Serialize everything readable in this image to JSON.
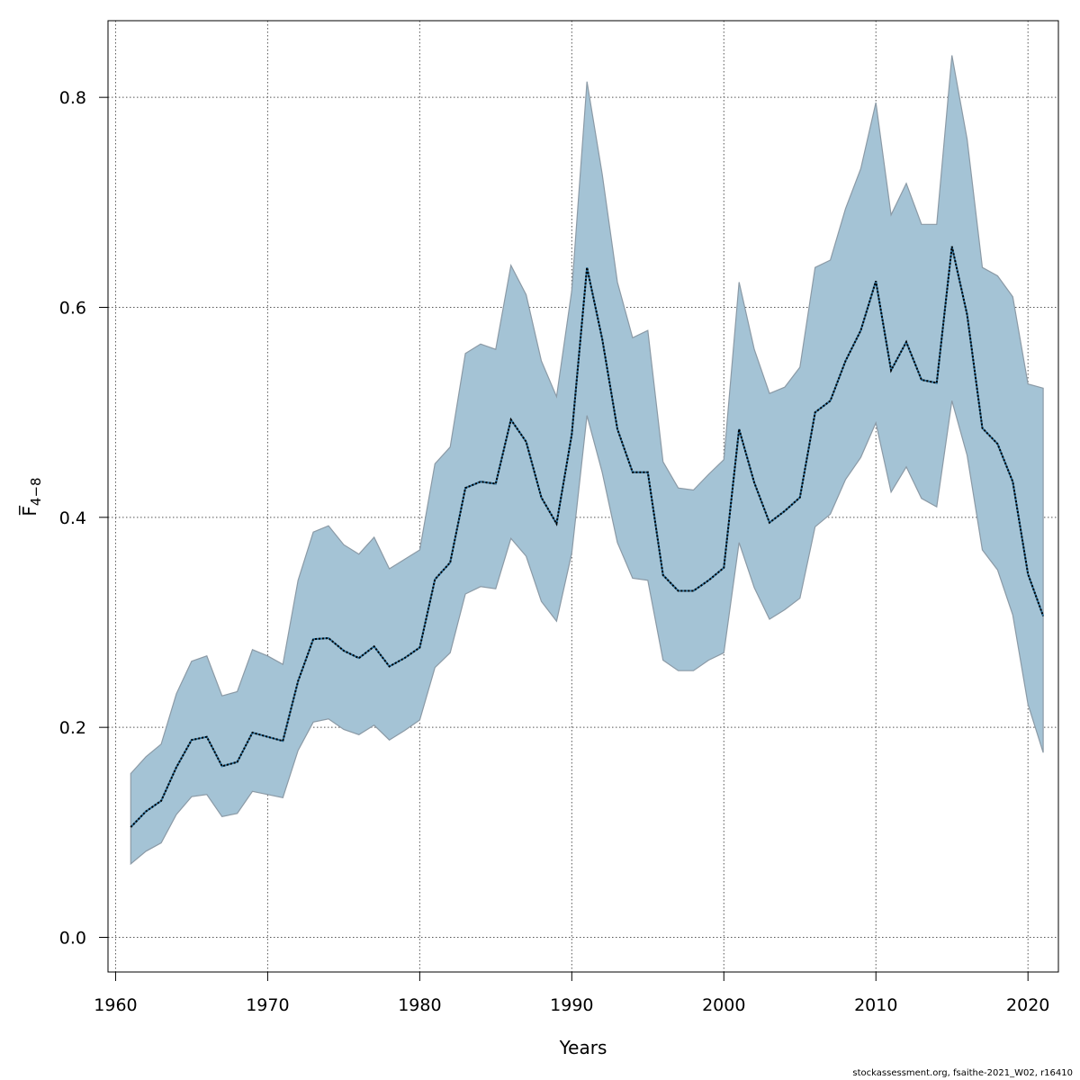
{
  "chart_data": {
    "type": "area",
    "xlabel": "Years",
    "ylabel": "F̅",
    "ylabel_subscript": "4−8",
    "xlim": [
      1959.5,
      2022.0
    ],
    "ylim": [
      -0.033,
      0.873
    ],
    "xticks": [
      1960,
      1970,
      1980,
      1990,
      2000,
      2010,
      2020
    ],
    "yticks": [
      0.0,
      0.2,
      0.4,
      0.6,
      0.8
    ],
    "ytick_labels": [
      "0.0",
      "0.2",
      "0.4",
      "0.6",
      "0.8"
    ],
    "grid": true,
    "colors": {
      "band": "#a4c3d5",
      "band_edge": "#8b9aa6",
      "line": "#000000",
      "line_under": "#2b6f9a"
    },
    "x": [
      1961,
      1962,
      1963,
      1964,
      1965,
      1966,
      1967,
      1968,
      1969,
      1970,
      1971,
      1972,
      1973,
      1974,
      1975,
      1976,
      1977,
      1978,
      1979,
      1980,
      1981,
      1982,
      1983,
      1984,
      1985,
      1986,
      1987,
      1988,
      1989,
      1990,
      1991,
      1992,
      1993,
      1994,
      1995,
      1996,
      1997,
      1998,
      1999,
      2000,
      2001,
      2002,
      2003,
      2004,
      2005,
      2006,
      2007,
      2008,
      2009,
      2010,
      2011,
      2012,
      2013,
      2014,
      2015,
      2016,
      2017,
      2018,
      2019,
      2020,
      2021
    ],
    "series": [
      {
        "role": "estimate",
        "values": [
          0.105,
          0.12,
          0.13,
          0.162,
          0.188,
          0.191,
          0.163,
          0.167,
          0.195,
          0.191,
          0.187,
          0.244,
          0.284,
          0.285,
          0.273,
          0.266,
          0.277,
          0.258,
          0.266,
          0.276,
          0.341,
          0.357,
          0.428,
          0.434,
          0.432,
          0.493,
          0.472,
          0.419,
          0.394,
          0.479,
          0.638,
          0.57,
          0.484,
          0.443,
          0.443,
          0.345,
          0.33,
          0.33,
          0.34,
          0.352,
          0.484,
          0.433,
          0.395,
          0.406,
          0.419,
          0.5,
          0.511,
          0.549,
          0.578,
          0.625,
          0.54,
          0.567,
          0.531,
          0.528,
          0.658,
          0.593,
          0.485,
          0.47,
          0.434,
          0.346,
          0.306
        ]
      },
      {
        "role": "lower",
        "values": [
          0.07,
          0.082,
          0.09,
          0.117,
          0.134,
          0.136,
          0.115,
          0.118,
          0.139,
          0.136,
          0.133,
          0.178,
          0.205,
          0.208,
          0.198,
          0.193,
          0.202,
          0.188,
          0.197,
          0.207,
          0.257,
          0.271,
          0.327,
          0.334,
          0.332,
          0.38,
          0.363,
          0.32,
          0.301,
          0.366,
          0.497,
          0.443,
          0.376,
          0.342,
          0.34,
          0.264,
          0.254,
          0.254,
          0.264,
          0.271,
          0.376,
          0.333,
          0.303,
          0.312,
          0.323,
          0.391,
          0.403,
          0.436,
          0.457,
          0.49,
          0.424,
          0.448,
          0.418,
          0.41,
          0.511,
          0.459,
          0.369,
          0.35,
          0.307,
          0.222,
          0.176
        ]
      },
      {
        "role": "upper",
        "values": [
          0.156,
          0.172,
          0.184,
          0.232,
          0.263,
          0.268,
          0.23,
          0.234,
          0.274,
          0.268,
          0.26,
          0.34,
          0.386,
          0.392,
          0.374,
          0.365,
          0.381,
          0.351,
          0.36,
          0.369,
          0.451,
          0.467,
          0.556,
          0.565,
          0.56,
          0.64,
          0.612,
          0.549,
          0.515,
          0.616,
          0.815,
          0.727,
          0.624,
          0.571,
          0.578,
          0.453,
          0.428,
          0.426,
          0.441,
          0.455,
          0.624,
          0.56,
          0.518,
          0.524,
          0.543,
          0.638,
          0.645,
          0.694,
          0.732,
          0.795,
          0.688,
          0.718,
          0.679,
          0.679,
          0.84,
          0.76,
          0.638,
          0.63,
          0.61,
          0.527,
          0.523
        ]
      }
    ]
  },
  "footer_text": "stockassessment.org, fsaithe-2021_W02, r16410"
}
